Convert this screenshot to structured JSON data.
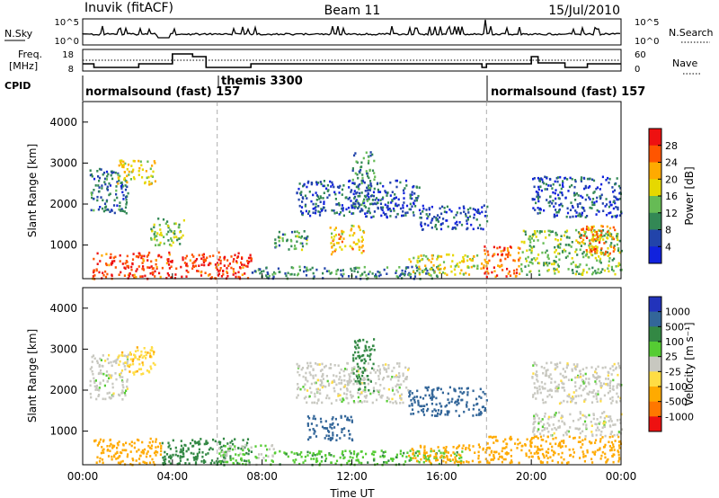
{
  "header": {
    "station": "Inuvik (fitACF)",
    "beam": "Beam 11",
    "date": "15/Jul/2010"
  },
  "panels": {
    "nsky": {
      "label": "N.Sky",
      "tick_top": "10^5",
      "tick_bottom": "10^0",
      "right_label": "N.Search",
      "right_tick_top": "10^5",
      "right_tick_bottom": "10^0"
    },
    "freq": {
      "label_line1": "Freq.",
      "label_line2": "[MHz]",
      "ticks": [
        "18",
        "8"
      ],
      "right_label": "Nave",
      "right_ticks": [
        "60",
        "0"
      ]
    },
    "cpid": {
      "label": "CPID",
      "segments": [
        {
          "name": "normalsound (fast) 157"
        },
        {
          "name": "themis 3300"
        },
        {
          "name": "normalsound (fast) 157"
        }
      ]
    }
  },
  "x_axis": {
    "label": "Time UT",
    "ticks": [
      "00:00",
      "04:00",
      "08:00",
      "12:00",
      "16:00",
      "20:00",
      "00:00"
    ]
  },
  "power_colorbar": {
    "label": "Power [dB]",
    "ticks": [
      "28",
      "24",
      "20",
      "16",
      "12",
      "8",
      "4"
    ],
    "colors": [
      "#ee1111",
      "#ff5500",
      "#ffaa00",
      "#e6d800",
      "#66bb55",
      "#338855",
      "#2244aa",
      "#1122dd"
    ]
  },
  "velocity_colorbar": {
    "label": "Velocity [m s⁻¹]",
    "ticks": [
      "1000",
      "500",
      "100",
      "25",
      "-25",
      "-100",
      "-500",
      "-1000"
    ],
    "colors": [
      "#2233bb",
      "#336699",
      "#338844",
      "#55cc33",
      "#c8c8c0",
      "#ffdd44",
      "#ffaa00",
      "#ff7700",
      "#ee1111"
    ]
  },
  "chart_data": [
    {
      "type": "heatmap",
      "name": "power",
      "ylabel": "Slant Range [km]",
      "xlabel": "Time UT",
      "yticks": [
        1000,
        2000,
        3000,
        4000
      ],
      "xrange_hours": [
        0,
        24
      ],
      "yrange_km": [
        180,
        4500
      ],
      "cmap_range_db": [
        0,
        32
      ],
      "regions": [
        {
          "t0": 0.4,
          "t1": 7.5,
          "r0": 200,
          "r1": 850,
          "v": 28
        },
        {
          "t0": 7.5,
          "t1": 16.0,
          "r0": 200,
          "r1": 500,
          "v": 10
        },
        {
          "t0": 14.5,
          "t1": 18.0,
          "r0": 300,
          "r1": 800,
          "v": 18
        },
        {
          "t0": 17.8,
          "t1": 19.5,
          "r0": 250,
          "r1": 1000,
          "v": 26
        },
        {
          "t0": 19.5,
          "t1": 24.0,
          "r0": 300,
          "r1": 1400,
          "v": 14
        },
        {
          "t0": 22.0,
          "t1": 23.7,
          "r0": 800,
          "r1": 1500,
          "v": 24
        },
        {
          "t0": 9.5,
          "t1": 15.0,
          "r0": 1700,
          "r1": 2600,
          "v": 6
        },
        {
          "t0": 12.0,
          "t1": 13.0,
          "r0": 2000,
          "r1": 3300,
          "v": 10
        },
        {
          "t0": 15.0,
          "t1": 18.0,
          "r0": 1400,
          "r1": 2000,
          "v": 6
        },
        {
          "t0": 0.3,
          "t1": 2.0,
          "r0": 1800,
          "r1": 2900,
          "v": 8
        },
        {
          "t0": 1.5,
          "t1": 3.2,
          "r0": 2500,
          "r1": 3100,
          "v": 18
        },
        {
          "t0": 3.0,
          "t1": 4.5,
          "r0": 1000,
          "r1": 1700,
          "v": 14
        },
        {
          "t0": 8.5,
          "t1": 10.0,
          "r0": 900,
          "r1": 1400,
          "v": 12
        },
        {
          "t0": 11.0,
          "t1": 12.5,
          "r0": 800,
          "r1": 1500,
          "v": 20
        },
        {
          "t0": 20.0,
          "t1": 24.0,
          "r0": 1700,
          "r1": 2700,
          "v": 6
        }
      ]
    },
    {
      "type": "heatmap",
      "name": "velocity",
      "ylabel": "Slant Range [km]",
      "xlabel": "Time UT",
      "yticks": [
        1000,
        2000,
        3000,
        4000
      ],
      "xrange_hours": [
        0,
        24
      ],
      "yrange_km": [
        180,
        4500
      ],
      "regions": [
        {
          "t0": 0.4,
          "t1": 3.5,
          "r0": 200,
          "r1": 850,
          "v": -400
        },
        {
          "t0": 3.5,
          "t1": 7.5,
          "r0": 200,
          "r1": 850,
          "v": 150
        },
        {
          "t0": 6.0,
          "t1": 8.5,
          "r0": 200,
          "r1": 700,
          "v": 30
        },
        {
          "t0": 8.5,
          "t1": 17.0,
          "r0": 200,
          "r1": 550,
          "v": 80
        },
        {
          "t0": 14.5,
          "t1": 18.0,
          "r0": 250,
          "r1": 700,
          "v": -300
        },
        {
          "t0": 18.0,
          "t1": 24.0,
          "r0": 250,
          "r1": 900,
          "v": -400
        },
        {
          "t0": 20.0,
          "t1": 24.0,
          "r0": 900,
          "r1": 1500,
          "v": 0
        },
        {
          "t0": 9.5,
          "t1": 14.5,
          "r0": 1700,
          "r1": 2700,
          "v": 0
        },
        {
          "t0": 14.5,
          "t1": 18.0,
          "r0": 1400,
          "r1": 2100,
          "v": 900
        },
        {
          "t0": 12.0,
          "t1": 13.0,
          "r0": 2000,
          "r1": 3300,
          "v": 200
        },
        {
          "t0": 0.3,
          "t1": 2.0,
          "r0": 1800,
          "r1": 2900,
          "v": 0
        },
        {
          "t0": 1.5,
          "t1": 3.2,
          "r0": 2400,
          "r1": 3100,
          "v": -80
        },
        {
          "t0": 20.0,
          "t1": 24.0,
          "r0": 1700,
          "r1": 2700,
          "v": 0
        },
        {
          "t0": 10.0,
          "t1": 12.0,
          "r0": 800,
          "r1": 1400,
          "v": 900
        }
      ]
    }
  ]
}
